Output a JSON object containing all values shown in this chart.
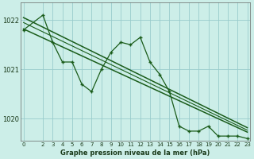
{
  "title": "Graphe pression niveau de la mer (hPa)",
  "bg_color": "#cceee8",
  "grid_color": "#99cccc",
  "line_color": "#1a5c1a",
  "xlim": [
    -0.3,
    23.3
  ],
  "ylim": [
    1019.55,
    1022.35
  ],
  "yticks": [
    1020,
    1021,
    1022
  ],
  "ytick_labels": [
    "1020",
    "1021",
    "1022"
  ],
  "x_ticks": [
    0,
    2,
    3,
    4,
    5,
    6,
    7,
    8,
    9,
    10,
    11,
    12,
    13,
    14,
    15,
    16,
    17,
    18,
    19,
    20,
    21,
    22,
    23
  ],
  "series_x": [
    0,
    2,
    3,
    4,
    5,
    6,
    7,
    8,
    9,
    10,
    11,
    12,
    13,
    14,
    15,
    16,
    17,
    18,
    19,
    20,
    21,
    22,
    23
  ],
  "series_y": [
    1021.8,
    1022.1,
    1021.55,
    1021.15,
    1021.15,
    1020.7,
    1020.55,
    1021.0,
    1021.35,
    1021.55,
    1021.5,
    1021.65,
    1021.15,
    1020.9,
    1020.55,
    1019.85,
    1019.75,
    1019.75,
    1019.85,
    1019.65,
    1019.65,
    1019.65,
    1019.6
  ],
  "trend1_x": [
    0,
    23
  ],
  "trend1_y": [
    1022.05,
    1019.82
  ],
  "trend2_x": [
    0,
    23
  ],
  "trend2_y": [
    1021.82,
    1019.73
  ],
  "trend3_x": [
    0,
    23
  ],
  "trend3_y": [
    1021.95,
    1019.77
  ]
}
